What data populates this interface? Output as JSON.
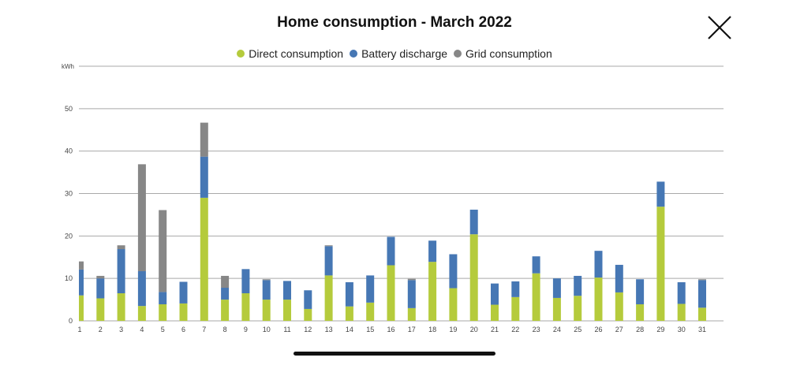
{
  "header": {
    "title": "Home consumption - March 2022",
    "close_icon": "close-x-icon"
  },
  "chart_data": {
    "type": "bar",
    "stacked": true,
    "title": "Home consumption - March 2022",
    "ylabel": "kWh",
    "xlabel": "",
    "ylim": [
      0,
      60
    ],
    "yticks": [
      0,
      10,
      20,
      30,
      40,
      50
    ],
    "grid": true,
    "legend": "top",
    "categories": [
      "1",
      "2",
      "3",
      "4",
      "5",
      "6",
      "7",
      "8",
      "9",
      "10",
      "11",
      "12",
      "13",
      "14",
      "15",
      "16",
      "17",
      "18",
      "19",
      "20",
      "21",
      "22",
      "23",
      "24",
      "25",
      "26",
      "27",
      "28",
      "29",
      "30",
      "31"
    ],
    "series": [
      {
        "name": "Direct consumption",
        "color": "#b5cb3c",
        "values": [
          6.0,
          5.3,
          6.5,
          3.5,
          3.9,
          4.1,
          29.0,
          5.0,
          6.5,
          5.0,
          5.0,
          2.8,
          10.7,
          3.4,
          4.3,
          13.1,
          3.0,
          13.9,
          7.7,
          20.4,
          3.8,
          5.6,
          11.2,
          5.4,
          5.9,
          10.2,
          6.7,
          3.9,
          26.9,
          4.0,
          3.1
        ]
      },
      {
        "name": "Battery discharge",
        "color": "#4677b4",
        "values": [
          6.1,
          4.7,
          10.4,
          8.2,
          2.9,
          5.1,
          9.7,
          2.8,
          5.7,
          4.6,
          4.4,
          4.4,
          6.9,
          5.7,
          6.4,
          6.7,
          6.6,
          5.0,
          8.0,
          5.8,
          5.0,
          3.7,
          4.0,
          4.6,
          4.7,
          6.3,
          6.5,
          5.9,
          5.9,
          5.1,
          6.5
        ]
      },
      {
        "name": "Grid consumption",
        "color": "#878787",
        "values": [
          1.9,
          0.6,
          0.9,
          25.2,
          19.3,
          0,
          8.0,
          2.8,
          0,
          0.2,
          0,
          0,
          0.2,
          0,
          0,
          0,
          0.3,
          0,
          0,
          0,
          0,
          0,
          0,
          0,
          0,
          0,
          0,
          0,
          0,
          0,
          0.2
        ]
      }
    ]
  }
}
